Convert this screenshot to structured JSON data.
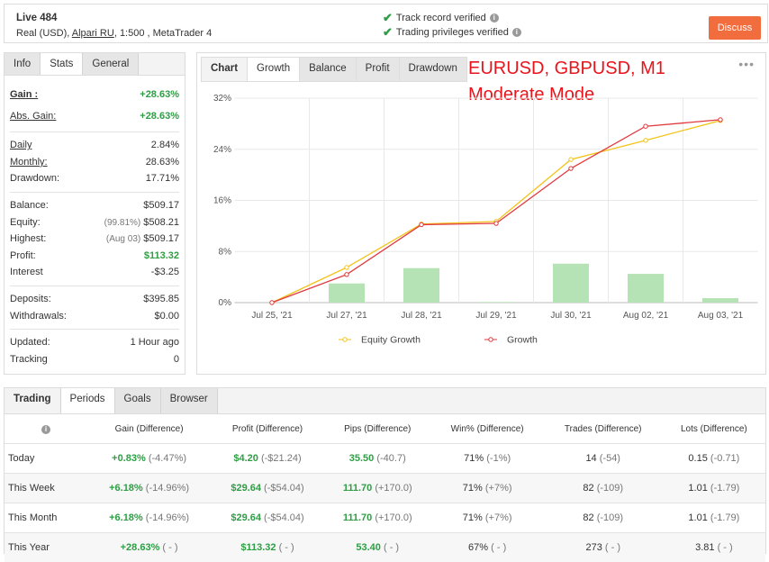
{
  "header": {
    "title": "Live 484",
    "account": "Real (USD), ",
    "broker": "Alpari RU",
    "platform": ", 1:500 , MetaTrader 4",
    "verified": [
      "Track record verified",
      "Trading privileges verified"
    ],
    "button": "Discuss"
  },
  "stats_panel": {
    "tabs": [
      "Info",
      "Stats",
      "General"
    ],
    "active_tab": 1,
    "groups": [
      [
        {
          "label": "Gain :",
          "value": "+28.63%",
          "color": "#2e9e44",
          "bold": true,
          "underline": true
        },
        {
          "label": "Abs. Gain:",
          "value": "+28.63%",
          "color": "#2e9e44",
          "underline": true
        }
      ],
      [
        {
          "label": "Daily",
          "value": "2.84%",
          "underline": true
        },
        {
          "label": "Monthly:",
          "value": "28.63%",
          "underline": true
        },
        {
          "label": "Drawdown:",
          "value": "17.71%"
        }
      ],
      [
        {
          "label": "Balance:",
          "value": "$509.17"
        },
        {
          "label": "Equity:",
          "note": "(99.81%)",
          "value": "$508.21"
        },
        {
          "label": "Highest:",
          "note": "(Aug 03)",
          "value": "$509.17"
        },
        {
          "label": "Profit:",
          "value": "$113.32",
          "color": "#2e9e44"
        },
        {
          "label": "Interest",
          "value": "-$3.25"
        }
      ],
      [
        {
          "label": "Deposits:",
          "value": "$395.85"
        },
        {
          "label": "Withdrawals:",
          "value": "$0.00"
        }
      ],
      [
        {
          "label": "Updated:",
          "value": "1 Hour ago"
        },
        {
          "label": "Tracking",
          "value": "0"
        }
      ]
    ]
  },
  "chart_tabs": {
    "tabs": [
      "Chart",
      "Growth",
      "Balance",
      "Profit",
      "Drawdown"
    ],
    "active_tab": 1
  },
  "chart_data": {
    "type": "line",
    "annotations": [
      "EURUSD, GBPUSD, M1",
      "Moderate Mode"
    ],
    "annotation_color": "#e8141b",
    "categories": [
      "Jul 25, '21",
      "Jul 27, '21",
      "Jul 28, '21",
      "Jul 29, '21",
      "Jul 30, '21",
      "Aug 02, '21",
      "Aug 03, '21"
    ],
    "series": [
      {
        "name": "Equity Growth",
        "color": "#f2c318",
        "values": [
          0,
          5.5,
          12.3,
          12.7,
          22.4,
          25.4,
          28.5
        ]
      },
      {
        "name": "Growth",
        "color": "#e0393e",
        "values": [
          0,
          4.4,
          12.2,
          12.4,
          21.0,
          27.6,
          28.63
        ]
      }
    ],
    "bars": {
      "color": "#b6e3b6",
      "values": [
        0,
        3.0,
        5.4,
        0.1,
        6.1,
        4.5,
        0.7
      ]
    },
    "ylim": [
      0,
      32
    ],
    "yticks": [
      {
        "value": 0,
        "label": "0%"
      },
      {
        "value": 8,
        "label": "8%"
      },
      {
        "value": 16,
        "label": "16%"
      },
      {
        "value": 24,
        "label": "24%"
      },
      {
        "value": 32,
        "label": "32%"
      }
    ],
    "grid": true
  },
  "periods_table": {
    "tabs": [
      "Trading",
      "Periods",
      "Goals",
      "Browser"
    ],
    "active_tab": 1,
    "columns": [
      "Gain (Difference)",
      "Profit (Difference)",
      "Pips (Difference)",
      "Win% (Difference)",
      "Trades (Difference)",
      "Lots (Difference)"
    ],
    "rows": [
      {
        "label": "Today",
        "cells": [
          [
            "+0.83%",
            "(-4.47%)"
          ],
          [
            "$4.20",
            "(-$21.24)"
          ],
          [
            "35.50",
            "(-40.7)"
          ],
          [
            "71%",
            "(-1%)"
          ],
          [
            "14",
            "(-54)"
          ],
          [
            "0.15",
            "(-0.71)"
          ]
        ]
      },
      {
        "label": "This Week",
        "cells": [
          [
            "+6.18%",
            "(-14.96%)"
          ],
          [
            "$29.64",
            "(-$54.04)"
          ],
          [
            "111.70",
            "(+170.0)"
          ],
          [
            "71%",
            "(+7%)"
          ],
          [
            "82",
            "(-109)"
          ],
          [
            "1.01",
            "(-1.79)"
          ]
        ]
      },
      {
        "label": "This Month",
        "cells": [
          [
            "+6.18%",
            "(-14.96%)"
          ],
          [
            "$29.64",
            "(-$54.04)"
          ],
          [
            "111.70",
            "(+170.0)"
          ],
          [
            "71%",
            "(+7%)"
          ],
          [
            "82",
            "(-109)"
          ],
          [
            "1.01",
            "(-1.79)"
          ]
        ]
      },
      {
        "label": "This Year",
        "cells": [
          [
            "+28.63%",
            "( - )"
          ],
          [
            "$113.32",
            "( - )"
          ],
          [
            "53.40",
            "( - )"
          ],
          [
            "67%",
            "( - )"
          ],
          [
            "273",
            "( - )"
          ],
          [
            "3.81",
            "( - )"
          ]
        ]
      }
    ]
  }
}
